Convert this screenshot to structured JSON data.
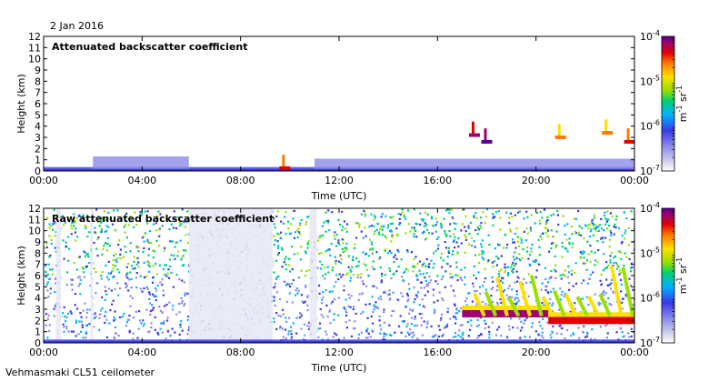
{
  "date": "2 Jan 2016",
  "instrument": "Vehmasmaki CL51 ceilometer",
  "colorbar": {
    "colors": [
      "#d8d8ee",
      "#8c8ce8",
      "#3a3ae8",
      "#00b4ff",
      "#00d070",
      "#9ae000",
      "#ffe000",
      "#ff7a00",
      "#e00000",
      "#a00070",
      "#5a0090"
    ]
  },
  "chart_data": [
    {
      "type": "heatmap",
      "title": "Attenuated backscatter coefficient",
      "xlabel": "Time (UTC)",
      "ylabel": "Height (km)",
      "xlim": [
        0,
        24
      ],
      "ylim": [
        0,
        12
      ],
      "x_ticks": [
        "00:00",
        "04:00",
        "08:00",
        "12:00",
        "16:00",
        "20:00",
        "00:00"
      ],
      "y_ticks": [
        "0",
        "1",
        "2",
        "3",
        "4",
        "5",
        "6",
        "7",
        "8",
        "9",
        "10",
        "11",
        "12"
      ],
      "colorbar": {
        "min_exp": -7,
        "max_exp": -4,
        "labels": [
          "10-7",
          "10-6",
          "10-5",
          "10-4"
        ],
        "unit": "m-1 sr-1",
        "scale": "log"
      },
      "features": [
        {
          "kind": "aerosol_layer",
          "t_start": 0.0,
          "t_end": 24.0,
          "h_top": 0.35,
          "level": 2
        },
        {
          "kind": "aerosol_layer",
          "t_start": 2.0,
          "t_end": 5.9,
          "h_top": 1.3,
          "level": 1
        },
        {
          "kind": "aerosol_layer",
          "t_start": 11.0,
          "t_end": 24.0,
          "h_top": 1.1,
          "level": 1
        },
        {
          "kind": "cloud",
          "t": 9.8,
          "h": 0.25,
          "level": 7
        },
        {
          "kind": "cloud",
          "t": 17.5,
          "h": 3.2,
          "level": 8
        },
        {
          "kind": "cloud",
          "t": 18.0,
          "h": 2.6,
          "level": 9
        },
        {
          "kind": "cloud",
          "t": 21.0,
          "h": 3.0,
          "level": 6
        },
        {
          "kind": "cloud",
          "t": 22.9,
          "h": 3.4,
          "level": 6
        },
        {
          "kind": "cloud",
          "t": 23.8,
          "h": 2.6,
          "level": 7
        }
      ]
    },
    {
      "type": "heatmap",
      "title": "Raw attenuated backscatter coefficient",
      "xlabel": "Time (UTC)",
      "ylabel": "Height (km)",
      "xlim": [
        0,
        24
      ],
      "ylim": [
        0,
        12
      ],
      "x_ticks": [
        "00:00",
        "04:00",
        "08:00",
        "12:00",
        "16:00",
        "20:00",
        "00:00"
      ],
      "y_ticks": [
        "0",
        "1",
        "2",
        "3",
        "4",
        "5",
        "6",
        "7",
        "8",
        "9",
        "10",
        "11",
        "12"
      ],
      "colorbar": {
        "min_exp": -7,
        "max_exp": -4,
        "labels": [
          "10-7",
          "10-6",
          "10-5",
          "10-4"
        ],
        "unit": "m-1 sr-1",
        "scale": "log"
      },
      "features": [
        {
          "kind": "noise_background",
          "t_start": 0.0,
          "t_end": 24.0,
          "level": 4
        },
        {
          "kind": "clear_gap",
          "t_start": 0.5,
          "t_end": 0.7
        },
        {
          "kind": "clear_gap",
          "t_start": 1.9,
          "t_end": 2.0
        },
        {
          "kind": "clear_gap",
          "t_start": 5.9,
          "t_end": 9.3
        },
        {
          "kind": "clear_gap",
          "t_start": 10.8,
          "t_end": 11.1
        },
        {
          "kind": "cloud_base",
          "t_start": 17.0,
          "t_end": 20.5,
          "h": 2.6,
          "level": 9
        },
        {
          "kind": "cloud_base",
          "t_start": 20.5,
          "t_end": 24.0,
          "h": 2.0,
          "level": 8
        },
        {
          "kind": "cloud_streaks",
          "t_start": 17.5,
          "t_end": 24.0,
          "h_top": 7.0,
          "level": 6
        },
        {
          "kind": "surface_layer",
          "t_start": 0.0,
          "t_end": 24.0,
          "h_top": 0.3,
          "level": 2
        }
      ]
    }
  ]
}
